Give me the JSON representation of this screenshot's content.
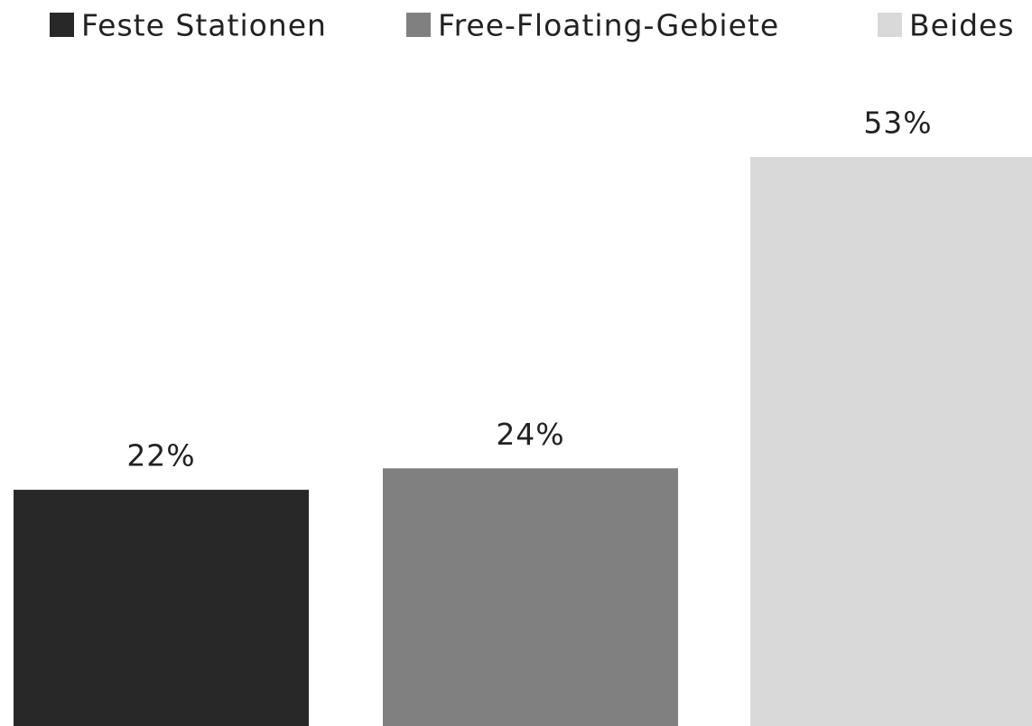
{
  "chart_data": {
    "type": "bar",
    "legend": "top",
    "series": [
      {
        "name": "Feste Stationen",
        "color": "#282828",
        "values": [
          22
        ],
        "value_labels": [
          "22%"
        ]
      },
      {
        "name": "Free-Floating-Gebiete",
        "color": "#808080",
        "values": [
          24
        ],
        "value_labels": [
          "24%"
        ]
      },
      {
        "name": "Beides",
        "color": "#d9d9d9",
        "values": [
          53
        ],
        "value_labels": [
          "53%"
        ]
      }
    ]
  }
}
